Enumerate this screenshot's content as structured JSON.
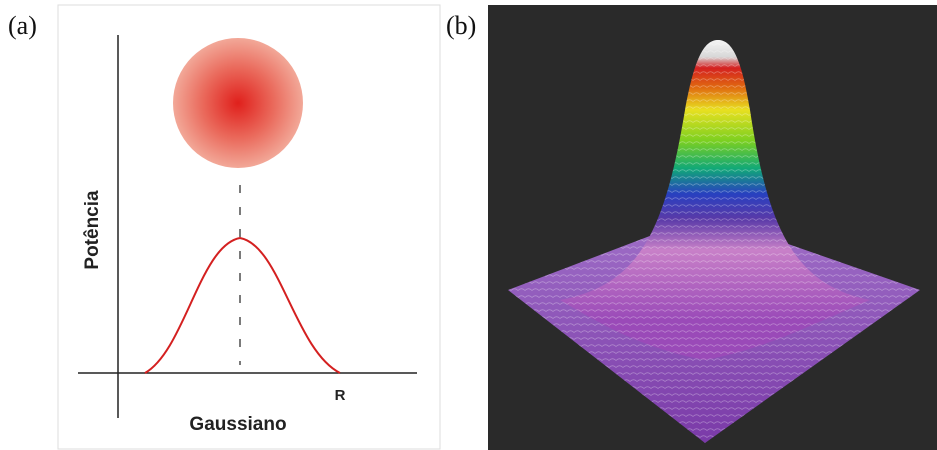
{
  "panel_a": {
    "label": "(a)",
    "y_axis_label": "Potência",
    "x_axis_label": "Gaussiano",
    "x_marker": "R"
  },
  "panel_b": {
    "label": "(b)"
  }
}
